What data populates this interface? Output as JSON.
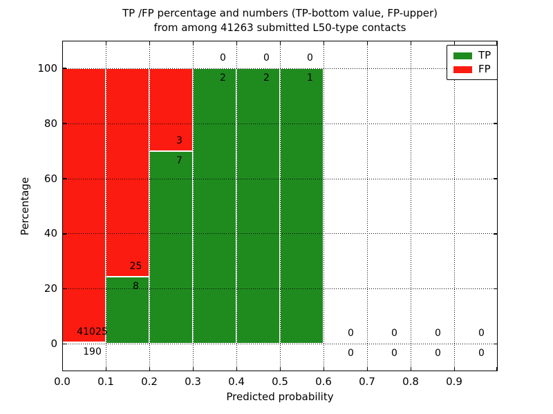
{
  "chart_data": {
    "type": "bar",
    "stacked": true,
    "title_line1": "TP /FP percentage and numbers (TP-bottom value, FP-upper)",
    "title_line2": "from among 41263 submitted L50-type contacts",
    "xlabel": "Predicted probability",
    "ylabel": "Percentage",
    "xlim": [
      0.0,
      1.0
    ],
    "ylim": [
      -10,
      110
    ],
    "grid": "dotted black, horizontal at y ticks, vertical at x ticks",
    "legend_position": "upper right",
    "x_ticks": [
      {
        "v": 0.0,
        "label": "0.0"
      },
      {
        "v": 0.1,
        "label": "0.1"
      },
      {
        "v": 0.2,
        "label": "0.2"
      },
      {
        "v": 0.3,
        "label": "0.3"
      },
      {
        "v": 0.4,
        "label": "0.4"
      },
      {
        "v": 0.5,
        "label": "0.5"
      },
      {
        "v": 0.6,
        "label": "0.6"
      },
      {
        "v": 0.7,
        "label": "0.7"
      },
      {
        "v": 0.8,
        "label": "0.8"
      },
      {
        "v": 0.9,
        "label": "0.9"
      }
    ],
    "x_tick_mark_values": [
      0.0,
      0.1,
      0.2,
      0.3,
      0.4,
      0.5,
      0.6,
      0.7,
      0.8,
      0.9,
      1.0
    ],
    "y_ticks": [
      {
        "v": 0,
        "label": "0"
      },
      {
        "v": 20,
        "label": "20"
      },
      {
        "v": 40,
        "label": "40"
      },
      {
        "v": 60,
        "label": "60"
      },
      {
        "v": 80,
        "label": "80"
      },
      {
        "v": 100,
        "label": "100"
      }
    ],
    "bins": [
      {
        "x0": 0.0,
        "x1": 0.1,
        "tp": 190,
        "fp": 41025
      },
      {
        "x0": 0.1,
        "x1": 0.2,
        "tp": 8,
        "fp": 25
      },
      {
        "x0": 0.2,
        "x1": 0.3,
        "tp": 7,
        "fp": 3
      },
      {
        "x0": 0.3,
        "x1": 0.4,
        "tp": 2,
        "fp": 0
      },
      {
        "x0": 0.4,
        "x1": 0.5,
        "tp": 2,
        "fp": 0
      },
      {
        "x0": 0.5,
        "x1": 0.6,
        "tp": 1,
        "fp": 0
      },
      {
        "x0": 0.6,
        "x1": 0.7,
        "tp": 0,
        "fp": 0
      },
      {
        "x0": 0.7,
        "x1": 0.8,
        "tp": 0,
        "fp": 0
      },
      {
        "x0": 0.8,
        "x1": 0.9,
        "tp": 0,
        "fp": 0
      },
      {
        "x0": 0.9,
        "x1": 1.0,
        "tp": 0,
        "fp": 0
      }
    ],
    "legend": [
      {
        "label": "TP",
        "color": "#1f8b1f"
      },
      {
        "label": "FP",
        "color": "#fb1b10"
      }
    ],
    "colors": {
      "tp": "#1f8b1f",
      "fp": "#fb1b10",
      "text": "#000000",
      "grid": "#000000",
      "background": "#ffffff"
    }
  }
}
